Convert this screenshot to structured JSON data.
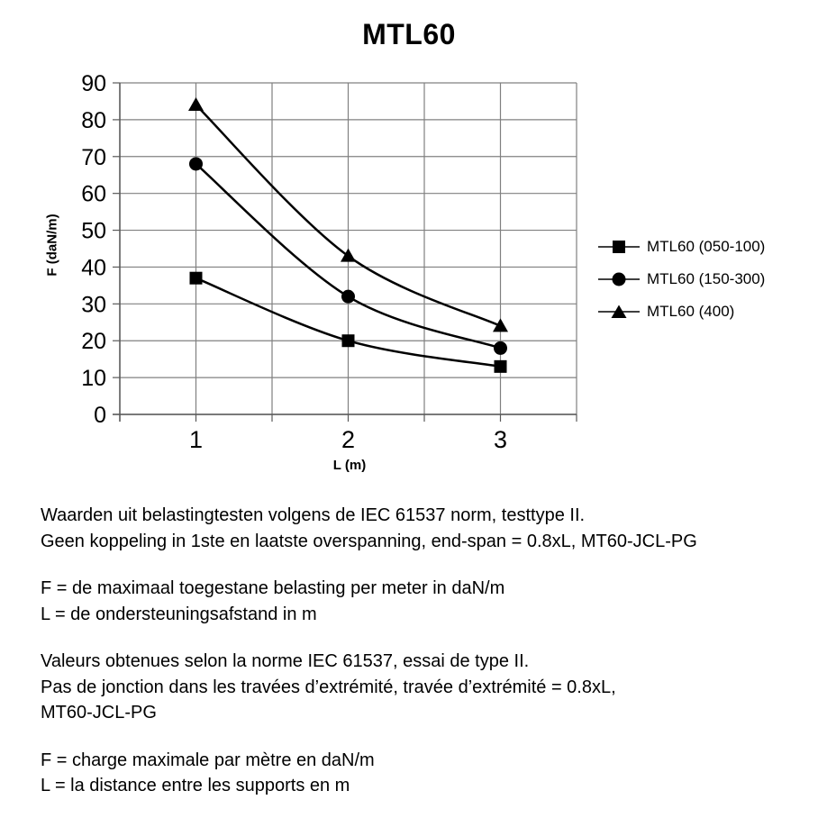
{
  "chart_data": {
    "type": "line",
    "title": "MTL60",
    "xlabel": "L (m)",
    "ylabel": "F (daN/m)",
    "x": [
      1,
      2,
      3
    ],
    "xlim": [
      0.5,
      3.5
    ],
    "ylim": [
      0,
      90
    ],
    "y_ticks": [
      0,
      10,
      20,
      30,
      40,
      50,
      60,
      70,
      80,
      90
    ],
    "x_grid_step": 0.5,
    "grid": true,
    "legend_position": "right",
    "series": [
      {
        "name": "MTL60 (050-100)",
        "marker": "square",
        "values": [
          37,
          20,
          13
        ]
      },
      {
        "name": "MTL60 (150-300)",
        "marker": "circle",
        "values": [
          68,
          32,
          18
        ]
      },
      {
        "name": "MTL60 (400)",
        "marker": "triangle",
        "values": [
          84,
          43,
          24
        ]
      }
    ],
    "colors": {
      "line": "#000000",
      "marker": "#000000",
      "grid": "#808080",
      "axis": "#595959",
      "text": "#000000"
    }
  },
  "notes": {
    "nl_test": [
      "Waarden uit belastingtesten volgens de IEC 61537 norm, testtype II.",
      "Geen koppeling in 1ste en laatste overspanning, end-span = 0.8xL, MT60-JCL-PG"
    ],
    "nl_defs": [
      "F = de maximaal toegestane belasting per meter in daN/m",
      "L = de ondersteuningsafstand in m"
    ],
    "fr_test": [
      "Valeurs obtenues selon la norme IEC 61537, essai de type II.",
      "Pas de jonction dans les travées d’extrémité, travée d’extrémité = 0.8xL,",
      "MT60-JCL-PG"
    ],
    "fr_defs": [
      "F = charge maximale par mètre en daN/m",
      "L = la distance entre les supports en m"
    ]
  }
}
